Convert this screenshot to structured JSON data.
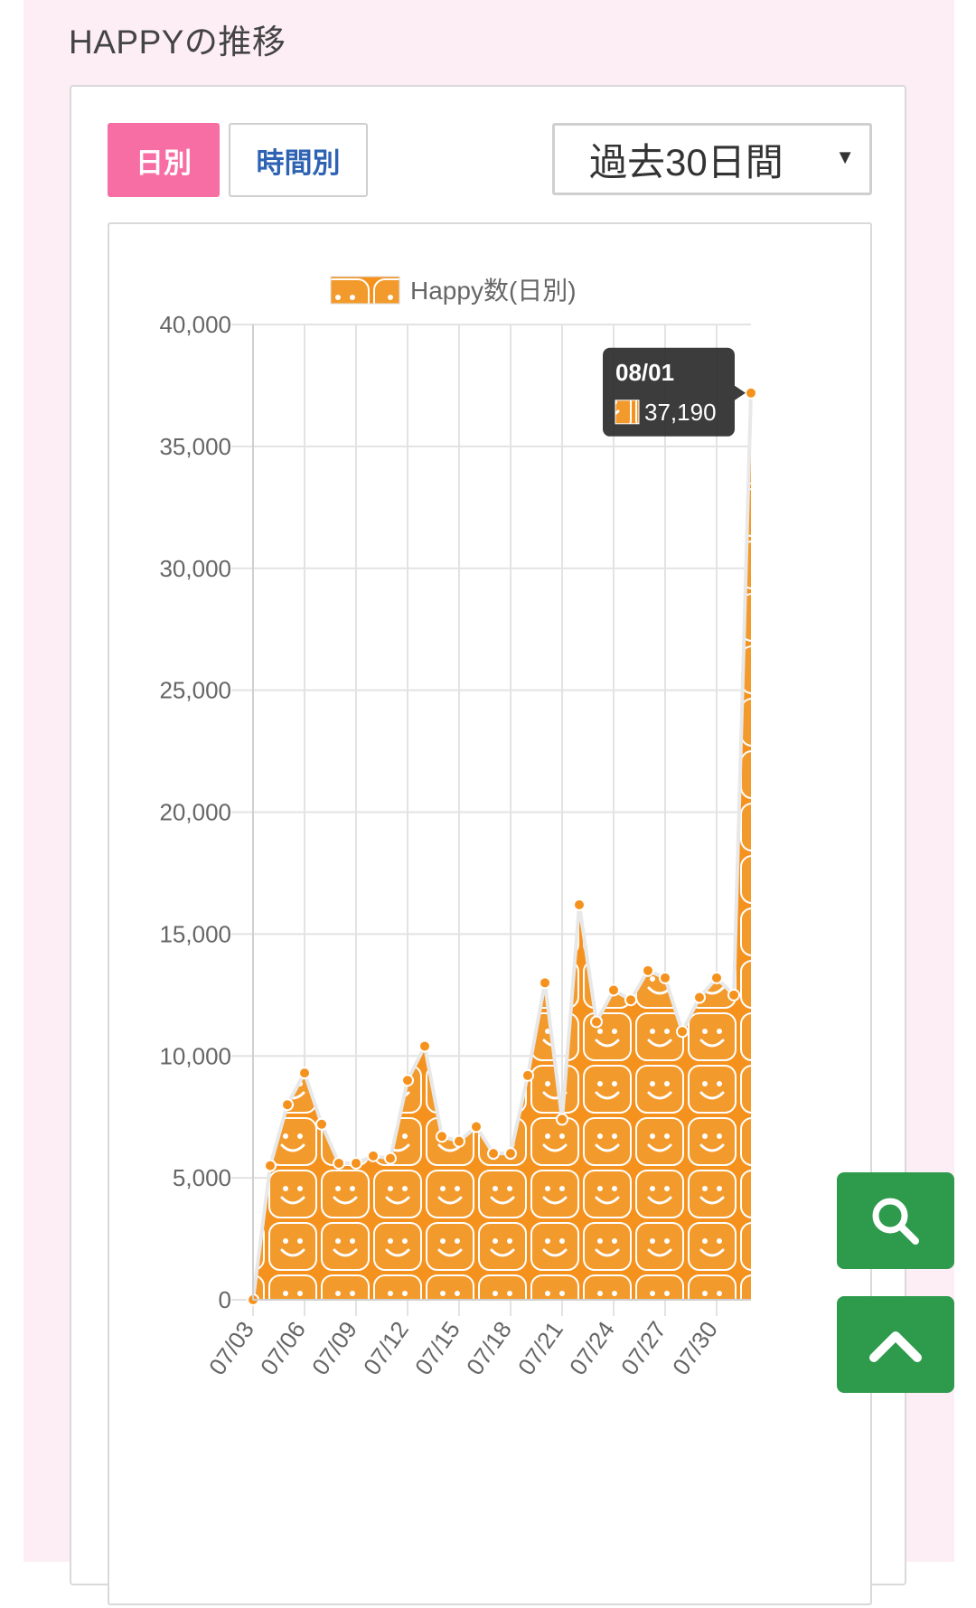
{
  "section": {
    "title": "HAPPYの推移"
  },
  "tabs": [
    {
      "label": "日別",
      "active": true
    },
    {
      "label": "時間別",
      "active": false
    }
  ],
  "period_select": {
    "value": "過去30日間"
  },
  "colors": {
    "accent": "#f76ea5",
    "series": "#f5921e",
    "tab_text": "#2e63b3",
    "fab": "#2e9a4c",
    "page_bg": "#fdeef5"
  },
  "tooltip": {
    "date": "08/01",
    "value": "37,190"
  },
  "icons": {
    "search": "search-icon",
    "scroll_top": "chevron-up-icon",
    "legend": "smiley-pattern-icon"
  },
  "chart_data": {
    "type": "area",
    "legend": "Happy数(日別)",
    "legend_position": "top",
    "grid": true,
    "ylim": [
      0,
      40000
    ],
    "yticks": [
      0,
      5000,
      10000,
      15000,
      20000,
      25000,
      30000,
      35000,
      40000
    ],
    "ytick_labels": [
      "0",
      "5,000",
      "10,000",
      "15,000",
      "20,000",
      "25,000",
      "30,000",
      "35,000",
      "40,000"
    ],
    "xtick_labels": [
      "07/03",
      "07/06",
      "07/09",
      "07/12",
      "07/15",
      "07/18",
      "07/21",
      "07/24",
      "07/27",
      "07/30"
    ],
    "categories": [
      "07/03",
      "07/04",
      "07/05",
      "07/06",
      "07/07",
      "07/08",
      "07/09",
      "07/10",
      "07/11",
      "07/12",
      "07/13",
      "07/14",
      "07/15",
      "07/16",
      "07/17",
      "07/18",
      "07/19",
      "07/20",
      "07/21",
      "07/22",
      "07/23",
      "07/24",
      "07/25",
      "07/26",
      "07/27",
      "07/28",
      "07/29",
      "07/30",
      "07/31",
      "08/01"
    ],
    "series": [
      {
        "name": "Happy数(日別)",
        "values": [
          0,
          5500,
          8000,
          9300,
          7200,
          5600,
          5600,
          5900,
          5800,
          9000,
          10400,
          6700,
          6500,
          7100,
          6000,
          6000,
          9200,
          13000,
          7400,
          16200,
          11400,
          12700,
          12300,
          13500,
          13200,
          11000,
          12400,
          13200,
          12500,
          37190
        ]
      }
    ]
  }
}
